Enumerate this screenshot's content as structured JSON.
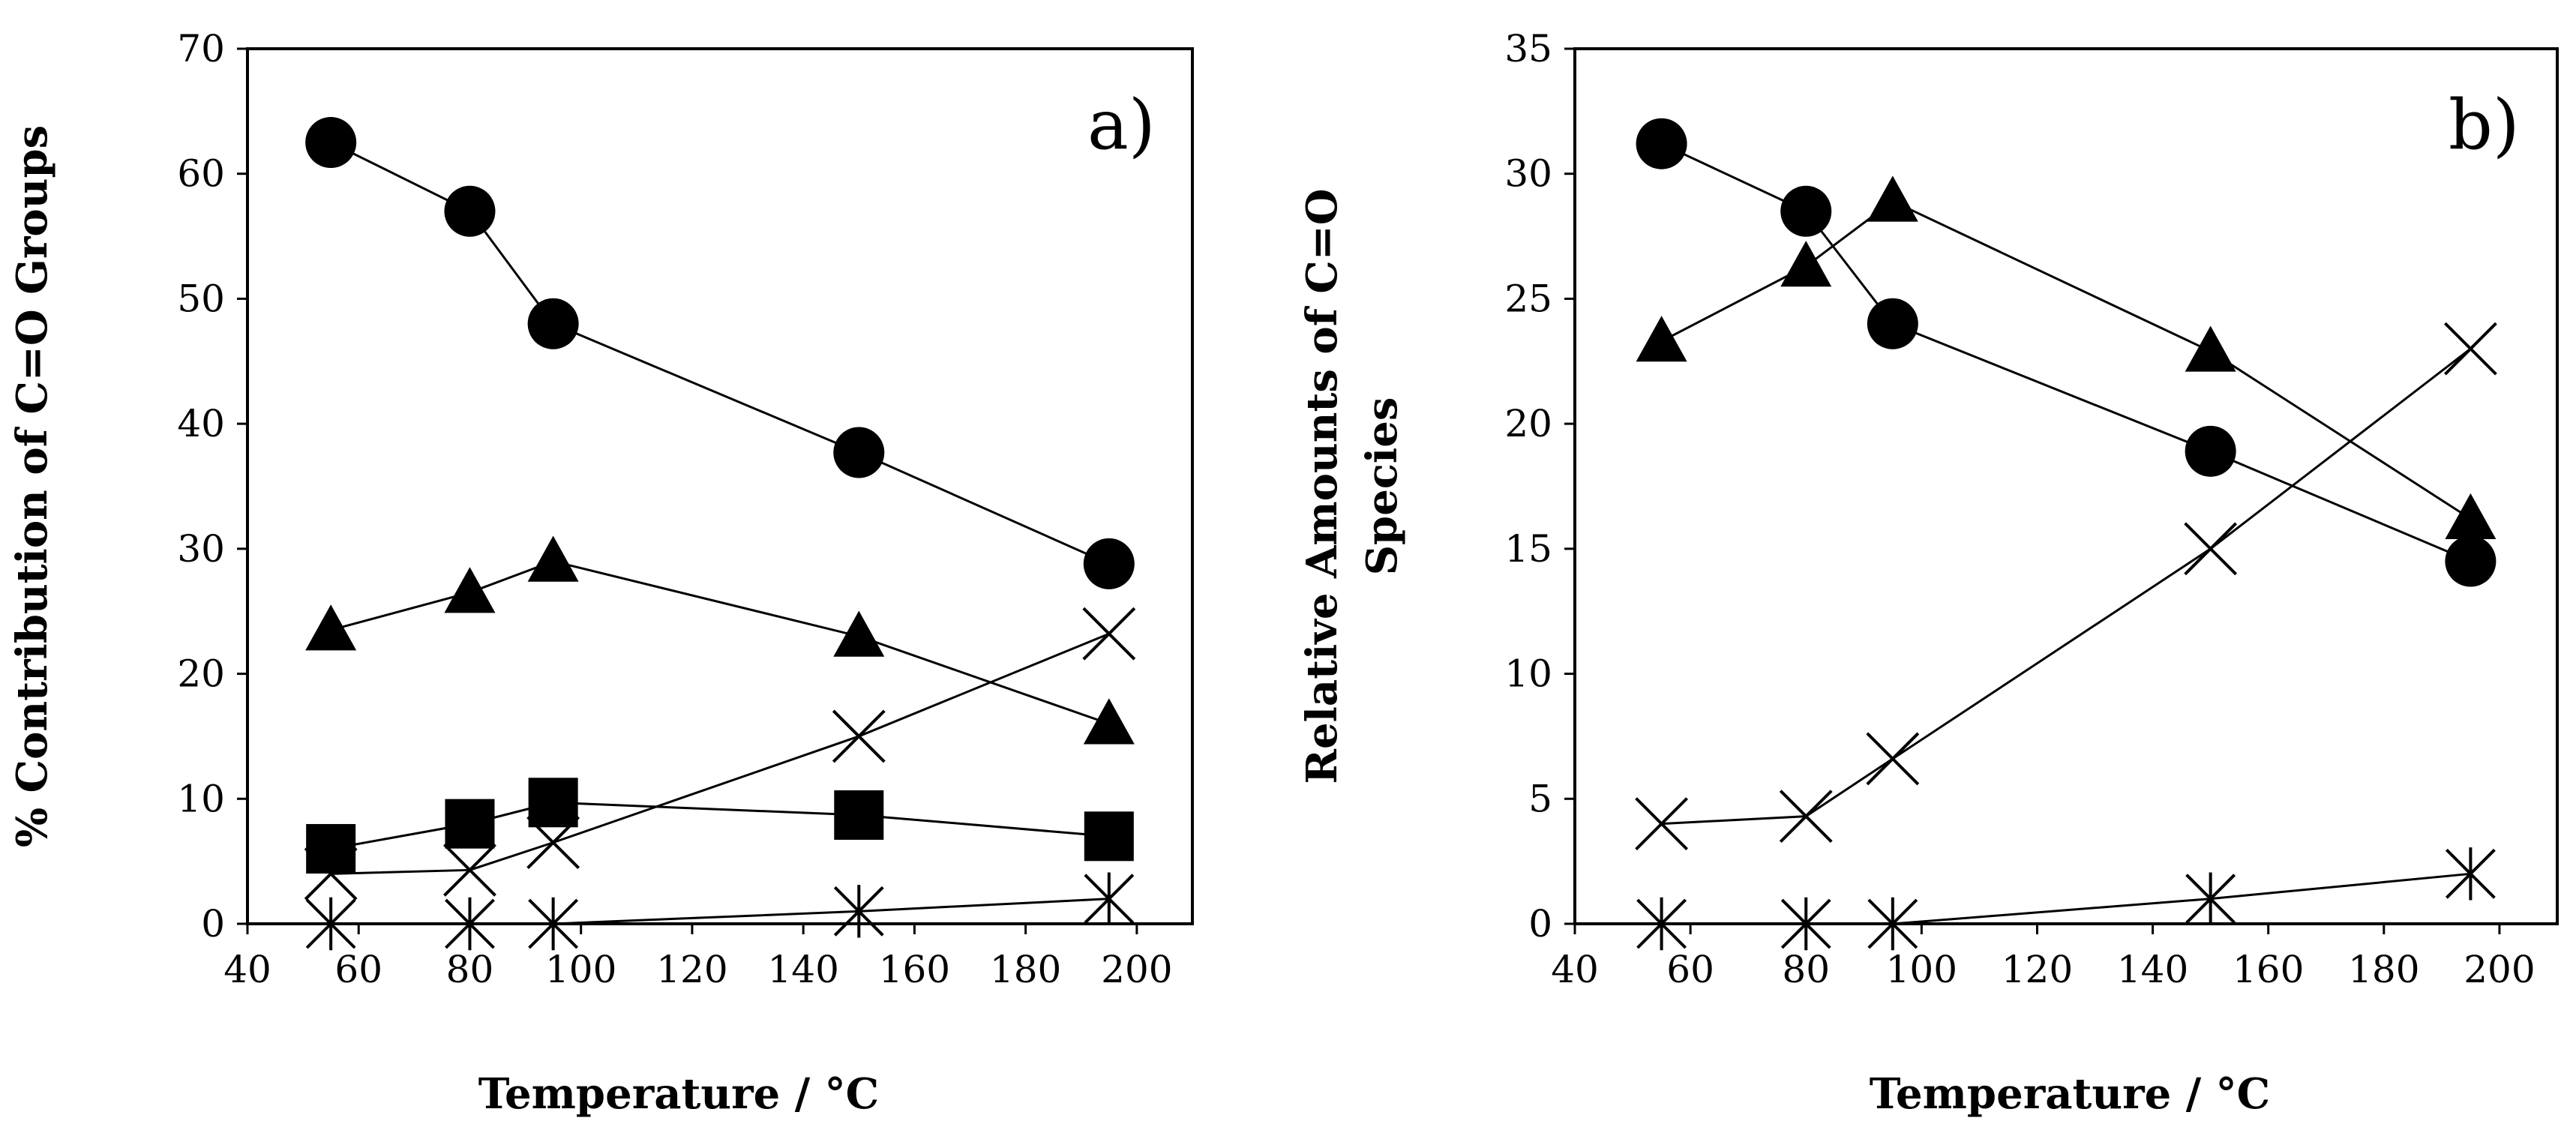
{
  "chart_data": [
    {
      "type": "line",
      "panel_label": "a)",
      "xlabel": "Temperature / °C",
      "ylabel": "% Contribution of C=O Groups",
      "xlim": [
        40,
        210
      ],
      "ylim": [
        0,
        70
      ],
      "xticks": [
        40,
        60,
        80,
        100,
        120,
        140,
        160,
        180,
        200
      ],
      "yticks": [
        0,
        10,
        20,
        30,
        40,
        50,
        60,
        70
      ],
      "grid": false,
      "legend": "none",
      "x": [
        55,
        80,
        95,
        150,
        195
      ],
      "series": [
        {
          "marker": "circle",
          "values": [
            62.5,
            57,
            48,
            37.7,
            28.8
          ]
        },
        {
          "marker": "triangle",
          "values": [
            23.5,
            26.5,
            29,
            23,
            16
          ]
        },
        {
          "marker": "square",
          "values": [
            6,
            8,
            9.7,
            8.7,
            7
          ]
        },
        {
          "marker": "cross",
          "values": [
            4,
            4.3,
            6.5,
            15,
            23.2
          ]
        },
        {
          "marker": "asterisk",
          "values": [
            0,
            0,
            0,
            1,
            2
          ]
        }
      ]
    },
    {
      "type": "line",
      "panel_label": "b)",
      "xlabel": "Temperature / °C",
      "ylabel": [
        "Relative Amounts of C=O",
        "Species"
      ],
      "xlim": [
        40,
        210
      ],
      "ylim": [
        0,
        35
      ],
      "xticks": [
        40,
        60,
        80,
        100,
        120,
        140,
        160,
        180,
        200
      ],
      "yticks": [
        0,
        5,
        10,
        15,
        20,
        25,
        30,
        35
      ],
      "grid": false,
      "legend": "none",
      "x": [
        55,
        80,
        95,
        150,
        195
      ],
      "series": [
        {
          "marker": "circle",
          "values": [
            31.2,
            28.5,
            24,
            18.9,
            14.5
          ]
        },
        {
          "marker": "triangle",
          "values": [
            23.3,
            26.3,
            28.9,
            22.9,
            16.2
          ]
        },
        {
          "marker": "cross",
          "values": [
            4,
            4.3,
            6.6,
            15,
            23
          ]
        },
        {
          "marker": "asterisk",
          "values": [
            0,
            0,
            0,
            1,
            2
          ]
        }
      ]
    }
  ]
}
